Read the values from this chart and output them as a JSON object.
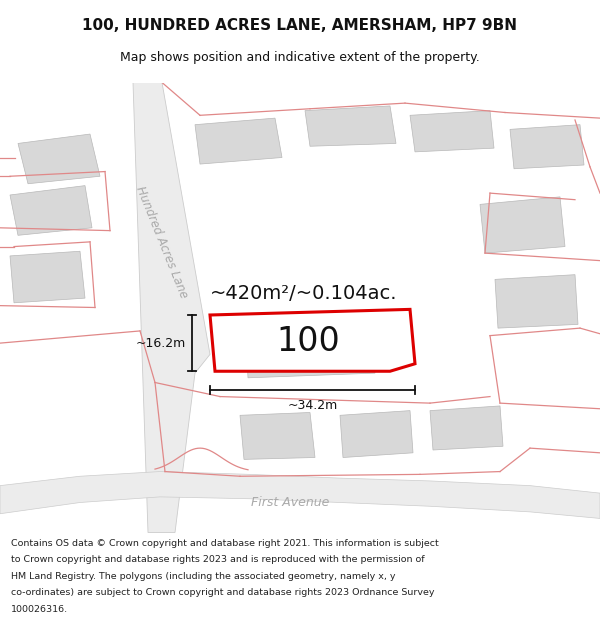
{
  "title": "100, HUNDRED ACRES LANE, AMERSHAM, HP7 9BN",
  "subtitle": "Map shows position and indicative extent of the property.",
  "footer_lines": [
    "Contains OS data © Crown copyright and database right 2021. This information is subject",
    "to Crown copyright and database rights 2023 and is reproduced with the permission of",
    "HM Land Registry. The polygons (including the associated geometry, namely x, y",
    "co-ordinates) are subject to Crown copyright and database rights 2023 Ordnance Survey",
    "100026316."
  ],
  "map_bg": "#f7f7f7",
  "building_fill": "#d8d8d8",
  "building_edge": "#b8b8b8",
  "boundary_color": "#e08888",
  "highlight_color": "#dd0000",
  "highlight_fill": "#ffffff",
  "area_text": "~420m²/~0.104ac.",
  "number_text": "100",
  "width_text": "~34.2m",
  "height_text": "~16.2m",
  "road_label_1": "Hundred Acres Lane",
  "road_label_2": "First Avenue",
  "road_fill": "#ececec",
  "road_edge": "#cccccc",
  "figsize": [
    6.0,
    6.25
  ],
  "dpi": 100
}
